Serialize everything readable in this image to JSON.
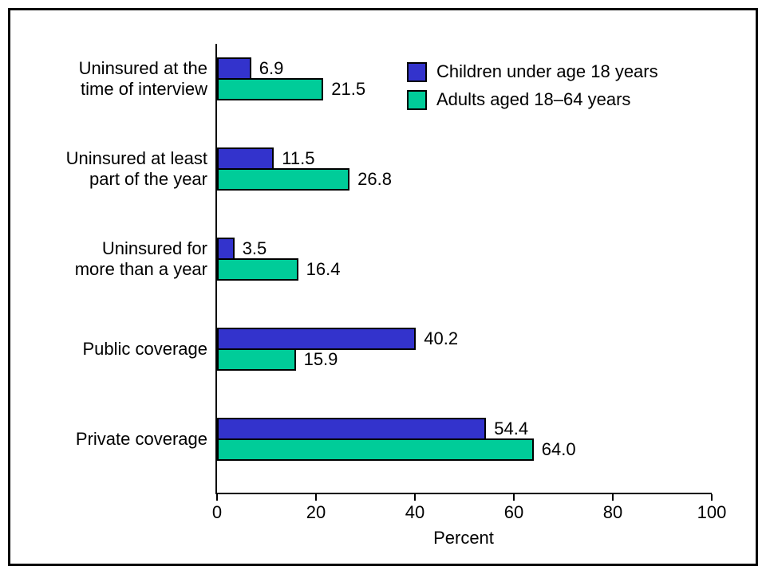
{
  "figure": {
    "background": "#ffffff",
    "border_color": "#000000"
  },
  "chart_data": {
    "type": "bar",
    "orientation": "horizontal",
    "title": "",
    "xlabel": "Percent",
    "xlim": [
      0,
      100
    ],
    "xticks": [
      0,
      20,
      40,
      60,
      80,
      100
    ],
    "grid": false,
    "legend_position": "top-right-inside",
    "categories": [
      "Uninsured at the\ntime of interview",
      "Uninsured at least\npart of the year",
      "Uninsured for\nmore than a year",
      "Public coverage",
      "Private coverage"
    ],
    "series": [
      {
        "name": "Children under age 18 years",
        "color": "#3333cc",
        "values": [
          6.9,
          11.5,
          3.5,
          40.2,
          54.4
        ],
        "labels": [
          "6.9",
          "11.5",
          "3.5",
          "40.2",
          "54.4"
        ]
      },
      {
        "name": "Adults aged 18–64 years",
        "color": "#00cc99",
        "values": [
          21.5,
          26.8,
          16.4,
          15.9,
          64.0
        ],
        "labels": [
          "21.5",
          "26.8",
          "16.4",
          "15.9",
          "64.0"
        ]
      }
    ]
  }
}
